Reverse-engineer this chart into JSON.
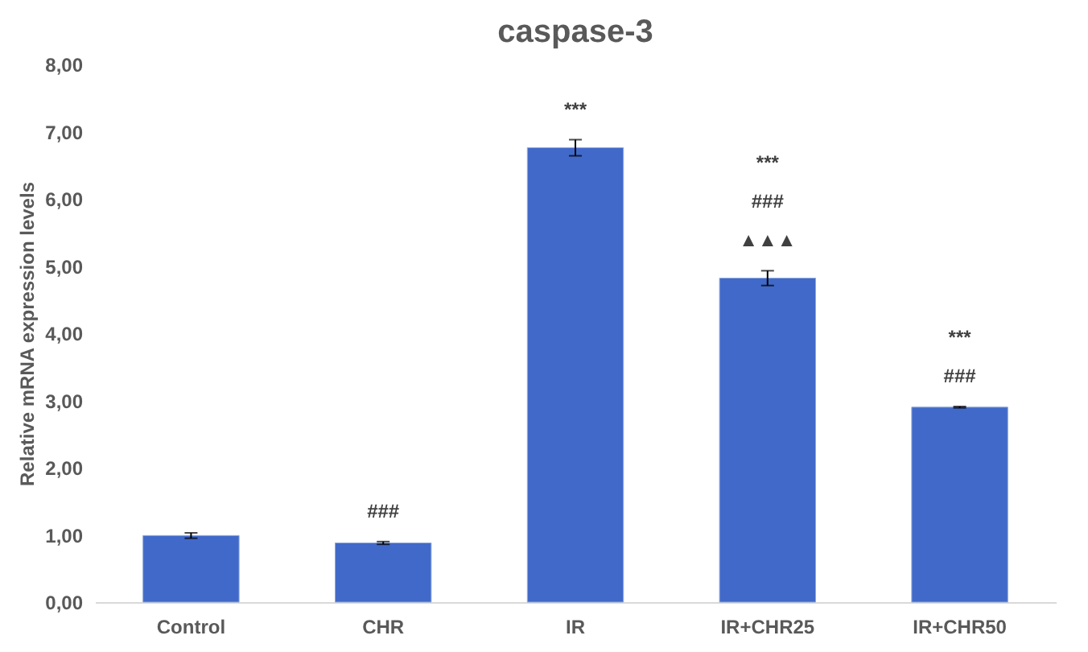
{
  "chart_data": {
    "type": "bar",
    "title": "caspase-3",
    "ylabel": "Relative mRNA expression levels",
    "categories": [
      "Control",
      "CHR",
      "IR",
      "IR+CHR25",
      "IR+CHR50"
    ],
    "values": [
      0.99,
      0.88,
      6.76,
      4.82,
      2.9
    ],
    "errors": [
      0.04,
      0.02,
      0.12,
      0.11,
      0.01
    ],
    "color": "#4169c9",
    "ylim": [
      0,
      8
    ],
    "yticks": [
      {
        "value": 0,
        "label": "0,00"
      },
      {
        "value": 1,
        "label": "1,00"
      },
      {
        "value": 2,
        "label": "2,00"
      },
      {
        "value": 3,
        "label": "3,00"
      },
      {
        "value": 4,
        "label": "4,00"
      },
      {
        "value": 5,
        "label": "5,00"
      },
      {
        "value": 6,
        "label": "6,00"
      },
      {
        "value": 7,
        "label": "7,00"
      },
      {
        "value": 8,
        "label": "8,00"
      }
    ],
    "grid": false,
    "annotations": [
      "###",
      "***",
      "***",
      "###",
      "▲▲▲",
      "***",
      "###"
    ]
  }
}
